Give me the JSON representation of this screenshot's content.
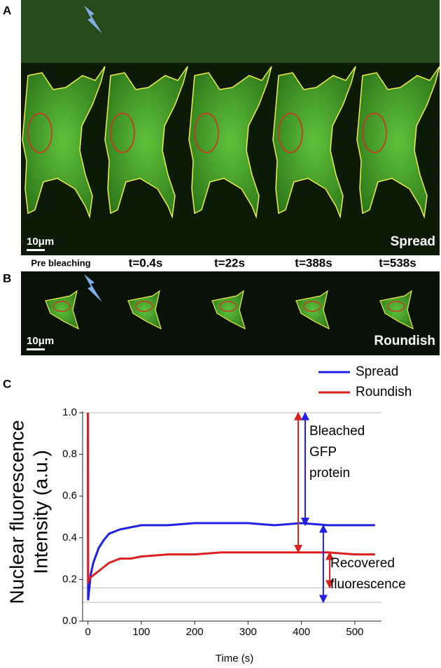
{
  "figure": {
    "panels": [
      {
        "label": "A",
        "scale": "10μm",
        "condition": "Spread"
      },
      {
        "label": "B",
        "scale": "10μm",
        "condition": "Roundish"
      },
      {
        "label": "C"
      }
    ],
    "time_labels": [
      "Pre bleaching",
      "t=0.4s",
      "t=22s",
      "t=388s",
      "t=538s"
    ]
  },
  "chart_data": {
    "type": "line",
    "ylabel": [
      "Nuclear fluorescence",
      "Intensity (a.u.)"
    ],
    "xlabel": "Time (s)",
    "x": [
      0,
      0.4,
      5,
      10,
      20,
      30,
      40,
      50,
      60,
      80,
      100,
      150,
      200,
      250,
      300,
      350,
      400,
      450,
      500,
      538
    ],
    "series": [
      {
        "name": "Spread",
        "color": "#1f1fe6",
        "values": [
          1.0,
          0.1,
          0.22,
          0.28,
          0.35,
          0.39,
          0.42,
          0.43,
          0.44,
          0.45,
          0.46,
          0.46,
          0.47,
          0.47,
          0.47,
          0.46,
          0.47,
          0.46,
          0.46,
          0.46
        ]
      },
      {
        "name": "Roundish",
        "color": "#dd1f1f",
        "values": [
          1.0,
          0.19,
          0.21,
          0.22,
          0.24,
          0.26,
          0.28,
          0.29,
          0.3,
          0.3,
          0.31,
          0.32,
          0.32,
          0.33,
          0.33,
          0.33,
          0.33,
          0.33,
          0.32,
          0.32
        ]
      }
    ],
    "xlim": [
      -10,
      550
    ],
    "ylim": [
      0,
      1
    ],
    "xticks": [
      0,
      100,
      200,
      300,
      400,
      500
    ],
    "yticks": [
      {
        "value": 0,
        "label": "0.0"
      },
      0.2,
      0.4,
      0.6,
      0.8,
      {
        "value": 1,
        "label": "1.0"
      }
    ],
    "hlines": [
      1,
      0.16,
      0.09
    ],
    "legend": "top-right",
    "arrows": [
      {
        "x": 394,
        "from": 1,
        "to": 0.33,
        "color": "#dd1f1f"
      },
      {
        "x": 407,
        "from": 1,
        "to": 0.46,
        "color": "#1f1fe6"
      },
      {
        "x": 441,
        "from": 0.46,
        "to": 0.09,
        "color": "#1f1fe6"
      },
      {
        "x": 453,
        "from": 0.33,
        "to": 0.16,
        "color": "#dd1f1f"
      }
    ],
    "annotations": [
      {
        "lines": [
          "Bleached",
          "GFP",
          "protein"
        ]
      },
      {
        "lines": [
          "Recovered",
          "fluorescence"
        ]
      }
    ]
  }
}
